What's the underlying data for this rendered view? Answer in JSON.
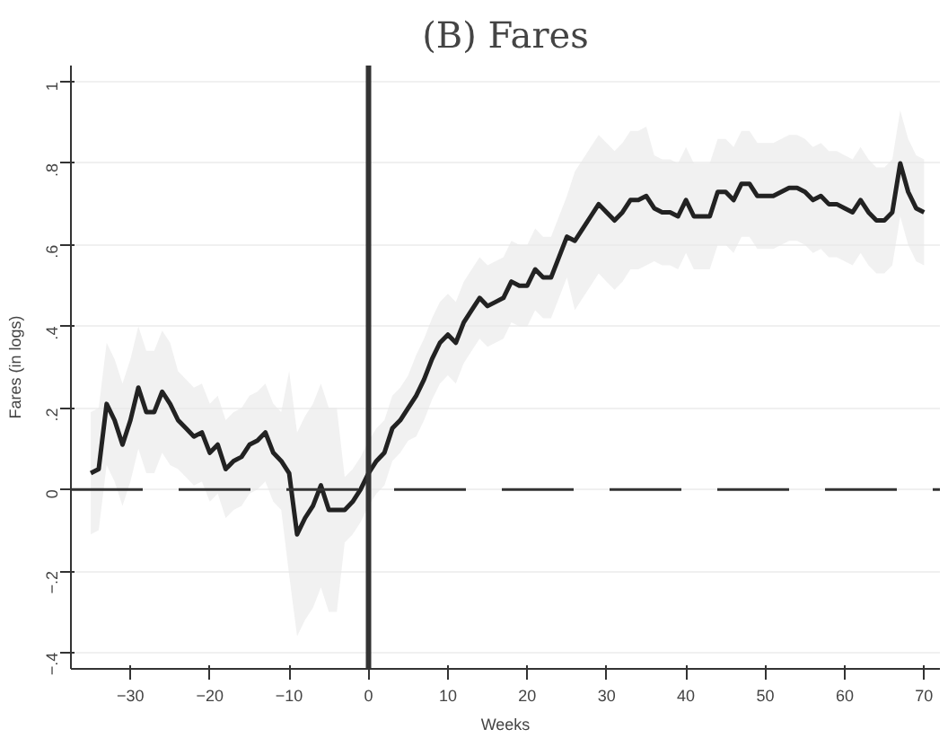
{
  "chart_data": {
    "type": "line",
    "title": "(B) Fares",
    "xlabel": "Weeks",
    "ylabel": "Fares (in logs)",
    "x": [
      -35,
      -34,
      -33,
      -32,
      -31,
      -30,
      -29,
      -28,
      -27,
      -26,
      -25,
      -24,
      -23,
      -22,
      -21,
      -20,
      -19,
      -18,
      -17,
      -16,
      -15,
      -14,
      -13,
      -12,
      -11,
      -10,
      -9,
      -8,
      -7,
      -6,
      -5,
      -4,
      -3,
      -2,
      -1,
      0,
      1,
      2,
      3,
      4,
      5,
      6,
      7,
      8,
      9,
      10,
      11,
      12,
      13,
      14,
      15,
      16,
      17,
      18,
      19,
      20,
      21,
      22,
      23,
      24,
      25,
      26,
      27,
      28,
      29,
      30,
      31,
      32,
      33,
      34,
      35,
      36,
      37,
      38,
      39,
      40,
      41,
      42,
      43,
      44,
      45,
      46,
      47,
      48,
      49,
      50,
      51,
      52,
      53,
      54,
      55,
      56,
      57,
      58,
      59,
      60,
      61,
      62,
      63,
      64,
      65,
      66,
      67,
      68,
      69,
      70
    ],
    "series": [
      {
        "color": "#222222",
        "values": [
          0.04,
          0.05,
          0.21,
          0.17,
          0.11,
          0.17,
          0.25,
          0.19,
          0.19,
          0.24,
          0.21,
          0.17,
          0.15,
          0.13,
          0.14,
          0.09,
          0.11,
          0.05,
          0.07,
          0.08,
          0.11,
          0.12,
          0.14,
          0.09,
          0.07,
          0.04,
          -0.11,
          -0.07,
          -0.04,
          0.01,
          -0.05,
          -0.05,
          -0.05,
          -0.03,
          0,
          0.04,
          0.07,
          0.09,
          0.15,
          0.17,
          0.2,
          0.23,
          0.27,
          0.32,
          0.36,
          0.38,
          0.36,
          0.41,
          0.44,
          0.47,
          0.45,
          0.46,
          0.47,
          0.51,
          0.5,
          0.5,
          0.54,
          0.52,
          0.52,
          0.57,
          0.62,
          0.61,
          0.64,
          0.67,
          0.7,
          0.68,
          0.66,
          0.68,
          0.71,
          0.71,
          0.72,
          0.69,
          0.68,
          0.68,
          0.67,
          0.71,
          0.67,
          0.67,
          0.67,
          0.73,
          0.73,
          0.71,
          0.75,
          0.75,
          0.72,
          0.72,
          0.72,
          0.73,
          0.74,
          0.74,
          0.73,
          0.71,
          0.72,
          0.7,
          0.7,
          0.69,
          0.68,
          0.71,
          0.68,
          0.66,
          0.66,
          0.68,
          0.8,
          0.73,
          0.69,
          0.68
        ],
        "lower": [
          -0.11,
          -0.1,
          0.06,
          0.02,
          -0.04,
          0.02,
          0.1,
          0.04,
          0.04,
          0.09,
          0.06,
          0.05,
          0.03,
          0.01,
          0.02,
          -0.03,
          -0.01,
          -0.07,
          -0.05,
          -0.04,
          -0.01,
          0,
          0.02,
          -0.03,
          -0.05,
          -0.21,
          -0.36,
          -0.32,
          -0.29,
          -0.24,
          -0.3,
          -0.3,
          -0.13,
          -0.11,
          -0.08,
          -0.04,
          -0.01,
          0.01,
          0.07,
          0.09,
          0.12,
          0.13,
          0.17,
          0.22,
          0.26,
          0.28,
          0.26,
          0.31,
          0.34,
          0.37,
          0.35,
          0.36,
          0.37,
          0.41,
          0.4,
          0.4,
          0.44,
          0.42,
          0.42,
          0.47,
          0.52,
          0.44,
          0.47,
          0.5,
          0.53,
          0.51,
          0.49,
          0.51,
          0.54,
          0.54,
          0.55,
          0.56,
          0.55,
          0.55,
          0.54,
          0.58,
          0.54,
          0.54,
          0.54,
          0.6,
          0.6,
          0.58,
          0.62,
          0.62,
          0.59,
          0.59,
          0.59,
          0.6,
          0.61,
          0.61,
          0.6,
          0.58,
          0.59,
          0.57,
          0.57,
          0.56,
          0.55,
          0.58,
          0.55,
          0.53,
          0.53,
          0.55,
          0.67,
          0.6,
          0.56,
          0.55
        ],
        "upper": [
          0.19,
          0.2,
          0.36,
          0.32,
          0.26,
          0.32,
          0.4,
          0.34,
          0.34,
          0.39,
          0.36,
          0.29,
          0.27,
          0.25,
          0.26,
          0.21,
          0.23,
          0.17,
          0.19,
          0.2,
          0.23,
          0.24,
          0.26,
          0.21,
          0.19,
          0.29,
          0.14,
          0.18,
          0.21,
          0.26,
          0.2,
          0.2,
          0.03,
          0.05,
          0.08,
          0.12,
          0.15,
          0.17,
          0.23,
          0.25,
          0.28,
          0.33,
          0.37,
          0.42,
          0.46,
          0.48,
          0.46,
          0.51,
          0.54,
          0.57,
          0.55,
          0.56,
          0.57,
          0.61,
          0.6,
          0.6,
          0.64,
          0.62,
          0.62,
          0.67,
          0.72,
          0.78,
          0.81,
          0.84,
          0.87,
          0.85,
          0.83,
          0.85,
          0.88,
          0.88,
          0.89,
          0.82,
          0.81,
          0.81,
          0.8,
          0.84,
          0.8,
          0.8,
          0.8,
          0.86,
          0.86,
          0.84,
          0.88,
          0.88,
          0.85,
          0.85,
          0.85,
          0.86,
          0.87,
          0.87,
          0.86,
          0.84,
          0.85,
          0.83,
          0.83,
          0.82,
          0.81,
          0.84,
          0.81,
          0.79,
          0.79,
          0.81,
          0.93,
          0.86,
          0.82,
          0.81
        ]
      }
    ],
    "xlim": [
      -37.5,
      72
    ],
    "ylim": [
      -0.44,
      1.04
    ],
    "xticks": [
      {
        "value": -30,
        "label": "−30"
      },
      {
        "value": -20,
        "label": "−20"
      },
      {
        "value": -10,
        "label": "−10"
      },
      0,
      10,
      20,
      30,
      40,
      50,
      60,
      70
    ],
    "yticks": [
      {
        "value": -0.4,
        "label": "−.4"
      },
      {
        "value": -0.2,
        "label": "−.2"
      },
      0,
      {
        "value": 0.2,
        "label": ".2"
      },
      {
        "value": 0.4,
        "label": ".4"
      },
      {
        "value": 0.6,
        "label": ".6"
      },
      {
        "value": 0.8,
        "label": ".8"
      },
      1
    ],
    "ref_lines": [
      {
        "axis": "y",
        "value": 0,
        "color": "#333333",
        "line_style": "dashed"
      },
      {
        "axis": "x",
        "value": 0,
        "color": "#333333",
        "line_style": "solid"
      }
    ],
    "grid": "y",
    "line_style": "solid",
    "marker": "none"
  }
}
